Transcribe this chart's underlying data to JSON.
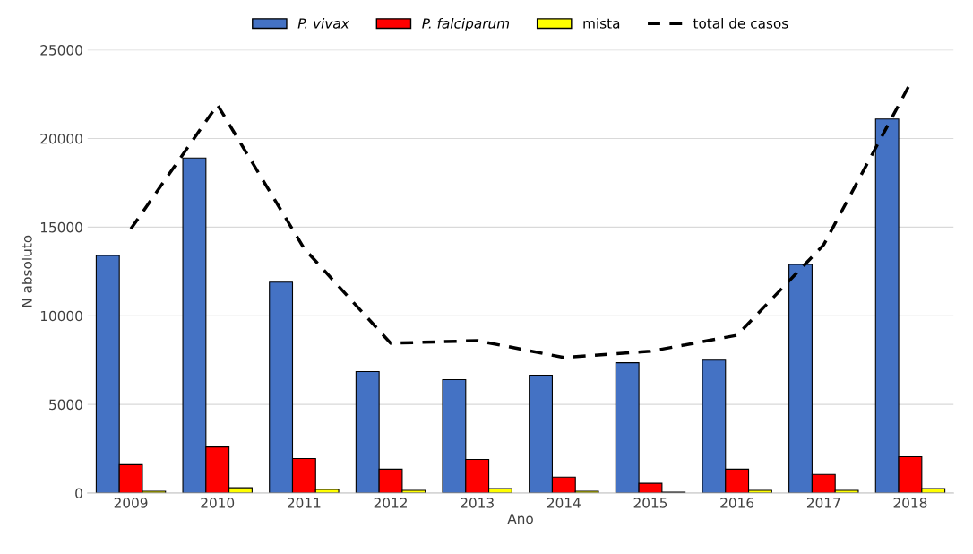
{
  "chart_data": {
    "type": "bar",
    "xlabel": "Ano",
    "ylabel": "N absoluto",
    "categories": [
      "2009",
      "2010",
      "2011",
      "2012",
      "2013",
      "2014",
      "2015",
      "2016",
      "2017",
      "2018"
    ],
    "series": [
      {
        "name": "P. vivax",
        "color": "#4472c4",
        "values": [
          13400,
          18900,
          11900,
          6850,
          6400,
          6650,
          7350,
          7500,
          12900,
          21100
        ]
      },
      {
        "name": "P. falciparum",
        "color": "#ff0000",
        "values": [
          1600,
          2600,
          1950,
          1350,
          1900,
          900,
          550,
          1350,
          1050,
          2050
        ]
      },
      {
        "name": "mista",
        "color": "#ffff00",
        "values": [
          100,
          300,
          200,
          150,
          250,
          100,
          50,
          150,
          150,
          250
        ]
      },
      {
        "name": "total de casos",
        "type": "line",
        "color": "#000000",
        "line_style": "dashed",
        "values": [
          14900,
          21900,
          13800,
          8450,
          8600,
          7650,
          8000,
          8900,
          14000,
          23100
        ]
      }
    ],
    "ylim": [
      0,
      25000
    ],
    "yticks": [
      0,
      5000,
      10000,
      15000,
      20000,
      25000
    ],
    "grid": "y",
    "legend": "top"
  }
}
